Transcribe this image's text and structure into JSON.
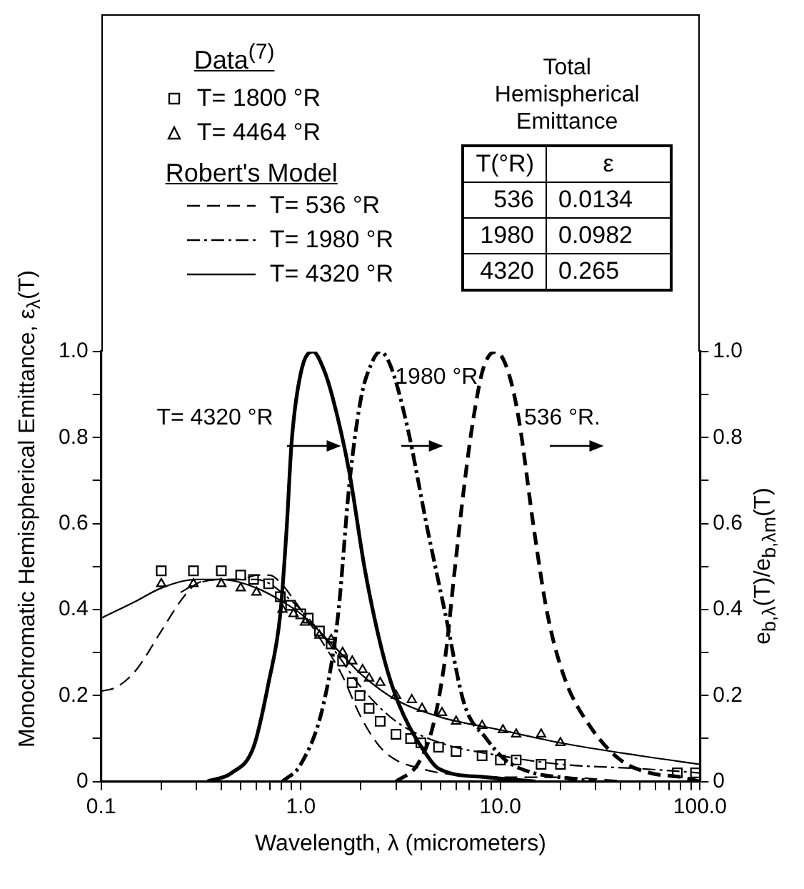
{
  "chart_data": [
    {
      "type": "line",
      "log": "x",
      "grid": false,
      "legend": "top left",
      "legend_title": "Data$^{(7)}$",
      "xlabel": "Wavelength, λ (micrometers)",
      "ylabel": "Monochromatic Hemispherical Emittance, ε$_{λ}$(T)",
      "y2label": "e$_{b,λ}$(T)/e$_{b,λm}$(T)",
      "xlim": [
        0.1,
        100
      ],
      "xticks": [
        {
          "value": 0.1,
          "label": "0.1"
        },
        {
          "value": 0.2,
          "label": null
        },
        {
          "value": 0.3,
          "label": null
        },
        {
          "value": 0.4,
          "label": null
        },
        {
          "value": 0.5,
          "label": null
        },
        {
          "value": 0.6,
          "label": null
        },
        {
          "value": 0.7,
          "label": null
        },
        {
          "value": 0.8,
          "label": null
        },
        {
          "value": 0.9,
          "label": null
        },
        {
          "value": 1,
          "label": "1.0"
        },
        {
          "value": 2,
          "label": null
        },
        {
          "value": 3,
          "label": null
        },
        {
          "value": 4,
          "label": null
        },
        {
          "value": 5,
          "label": null
        },
        {
          "value": 6,
          "label": null
        },
        {
          "value": 7,
          "label": null
        },
        {
          "value": 8,
          "label": null
        },
        {
          "value": 9,
          "label": null
        },
        {
          "value": 10,
          "label": "10.0"
        },
        {
          "value": 20,
          "label": null
        },
        {
          "value": 30,
          "label": null
        },
        {
          "value": 40,
          "label": null
        },
        {
          "value": 50,
          "label": null
        },
        {
          "value": 60,
          "label": null
        },
        {
          "value": 70,
          "label": null
        },
        {
          "value": 80,
          "label": null
        },
        {
          "value": 90,
          "label": null
        },
        {
          "value": 100,
          "label": "100.0"
        }
      ],
      "ylim": [
        0,
        1
      ],
      "yticks": [
        0,
        {
          "value": 0.1,
          "label": null
        },
        0.2,
        {
          "value": 0.3,
          "label": null
        },
        0.4,
        {
          "value": 0.5,
          "label": null
        },
        0.6,
        {
          "value": 0.7,
          "label": null
        },
        0.8,
        {
          "value": 0.9,
          "label": null
        },
        {
          "value": 1,
          "label": "1.0"
        }
      ],
      "y2lim": [
        0,
        1
      ],
      "y2ticks": [
        0,
        {
          "value": 0.1,
          "label": null
        },
        0.2,
        {
          "value": 0.3,
          "label": null
        },
        0.4,
        {
          "value": 0.5,
          "label": null
        },
        0.6,
        {
          "value": 0.7,
          "label": null
        },
        0.8,
        {
          "value": 0.9,
          "label": null
        },
        {
          "value": 1,
          "label": "1.0"
        }
      ],
      "annotations": [
        "Robert's Model",
        "T= 4320 °R",
        "1980 °R",
        "536 °R."
      ],
      "series": [
        {
          "type": "scatter",
          "name": "T= 1800 °R",
          "color": "#000000",
          "marker": "square",
          "x": [
            0.2,
            0.29,
            0.4,
            0.5,
            0.58,
            0.69,
            0.79,
            0.89,
            1.0,
            1.09,
            1.24,
            1.42,
            1.62,
            1.81,
            1.98,
            2.2,
            2.5,
            3.0,
            3.55,
            4.0,
            4.9,
            6.0,
            8.1,
            10,
            12,
            16,
            20,
            77,
            95
          ],
          "values": [
            0.49,
            0.49,
            0.49,
            0.48,
            0.47,
            0.46,
            0.43,
            0.41,
            0.39,
            0.38,
            0.35,
            0.32,
            0.28,
            0.23,
            0.2,
            0.17,
            0.14,
            0.11,
            0.1,
            0.09,
            0.08,
            0.07,
            0.06,
            0.05,
            0.05,
            0.04,
            0.04,
            0.02,
            0.02
          ]
        },
        {
          "type": "scatter",
          "name": "T= 4464 °R",
          "color": "#000000",
          "marker": "triangle",
          "x": [
            0.2,
            0.29,
            0.4,
            0.5,
            0.6,
            0.81,
            0.92,
            1.05,
            1.24,
            1.42,
            1.62,
            1.81,
            2.04,
            2.2,
            2.5,
            3.0,
            3.6,
            4.05,
            5.1,
            6.0,
            8.1,
            10.3,
            12,
            16,
            20
          ],
          "values": [
            0.46,
            0.46,
            0.46,
            0.45,
            0.44,
            0.4,
            0.39,
            0.37,
            0.34,
            0.33,
            0.3,
            0.28,
            0.26,
            0.24,
            0.23,
            0.2,
            0.19,
            0.17,
            0.16,
            0.14,
            0.13,
            0.12,
            0.11,
            0.11,
            0.09
          ]
        },
        {
          "type": "line",
          "name": "T= 536 °R",
          "color": "#000000",
          "marker": "none",
          "line_style": "dashed",
          "x": [
            0.1,
            0.12,
            0.15,
            0.2,
            0.25,
            0.3,
            0.4,
            0.5,
            0.6,
            0.7,
            0.8,
            0.9,
            1.0,
            1.3,
            1.6,
            2,
            2.5,
            3,
            4,
            5,
            10,
            20,
            50,
            100
          ],
          "values": [
            0.21,
            0.22,
            0.26,
            0.35,
            0.42,
            0.46,
            0.47,
            0.47,
            0.48,
            0.48,
            0.46,
            0.43,
            0.4,
            0.32,
            0.25,
            0.15,
            0.08,
            0.05,
            0.03,
            0.02,
            0.01,
            0.01,
            0,
            0
          ]
        },
        {
          "type": "line",
          "name": "T= 1980 °R",
          "color": "#000000",
          "marker": "none",
          "line_style": "dotted",
          "x": [
            0.25,
            0.3,
            0.4,
            0.5,
            0.6,
            0.7,
            0.8,
            0.9,
            1,
            1.5,
            2,
            3,
            5,
            10,
            20,
            50,
            100
          ],
          "values": [
            0.44,
            0.46,
            0.47,
            0.47,
            0.47,
            0.46,
            0.44,
            0.42,
            0.4,
            0.3,
            0.22,
            0.14,
            0.09,
            0.06,
            0.04,
            0.03,
            0.02
          ]
        },
        {
          "type": "line",
          "name": "T= 4320 °R",
          "color": "#000000",
          "marker": "none",
          "line_style": "solid",
          "x": [
            0.1,
            0.15,
            0.2,
            0.3,
            0.4,
            0.6,
            0.8,
            1,
            1.5,
            2,
            3,
            5,
            10,
            20,
            50,
            100
          ],
          "values": [
            0.38,
            0.42,
            0.45,
            0.47,
            0.47,
            0.45,
            0.42,
            0.39,
            0.31,
            0.25,
            0.19,
            0.15,
            0.12,
            0.09,
            0.06,
            0.04
          ]
        },
        {
          "type": "line",
          "axis": "y2",
          "color": "#000000",
          "marker": "none",
          "line_style": "solid",
          "x": [
            0.34,
            0.45,
            0.58,
            0.69,
            0.79,
            0.85,
            0.9,
            1.0,
            1.15,
            1.3,
            1.45,
            1.75,
            2.1,
            2.6,
            3.1,
            4.3,
            4.9,
            8.5,
            15
          ],
          "values": [
            0,
            0.02,
            0.08,
            0.23,
            0.39,
            0.59,
            0.79,
            0.95,
            1.0,
            0.96,
            0.89,
            0.72,
            0.49,
            0.29,
            0.18,
            0.06,
            0.03,
            0.01,
            0
          ]
        },
        {
          "type": "line",
          "axis": "y2",
          "color": "#000000",
          "marker": "none",
          "line_style": "dotted",
          "x": [
            0.81,
            1.0,
            1.3,
            1.54,
            1.75,
            2.0,
            2.25,
            2.5,
            2.8,
            3.4,
            4.3,
            5.3,
            6.6,
            8.5,
            10.6,
            14.6,
            20,
            30
          ],
          "values": [
            0,
            0.04,
            0.18,
            0.39,
            0.69,
            0.89,
            0.97,
            1.0,
            0.97,
            0.83,
            0.59,
            0.39,
            0.18,
            0.1,
            0.05,
            0.02,
            0.01,
            0
          ]
        },
        {
          "type": "line",
          "axis": "y2",
          "color": "#000000",
          "marker": "none",
          "line_style": "dashed",
          "x": [
            3.0,
            3.85,
            4.6,
            5.3,
            5.9,
            6.6,
            7.3,
            8.2,
            9.5,
            11,
            12.4,
            14.7,
            17.2,
            21,
            28,
            40,
            56,
            81,
            100
          ],
          "values": [
            0,
            0.04,
            0.13,
            0.29,
            0.49,
            0.69,
            0.84,
            0.96,
            1.0,
            0.95,
            0.84,
            0.59,
            0.39,
            0.24,
            0.13,
            0.05,
            0.02,
            0.01,
            0
          ]
        }
      ]
    },
    {
      "type": "other",
      "title": "Total Hemispherical Emittance",
      "xlabel": "T(°R)",
      "ylabel": "ε",
      "categories": [
        "536",
        "1980",
        "4320"
      ],
      "values": [
        0.0134,
        0.0982,
        0.265
      ],
      "data_labels": true
    }
  ]
}
